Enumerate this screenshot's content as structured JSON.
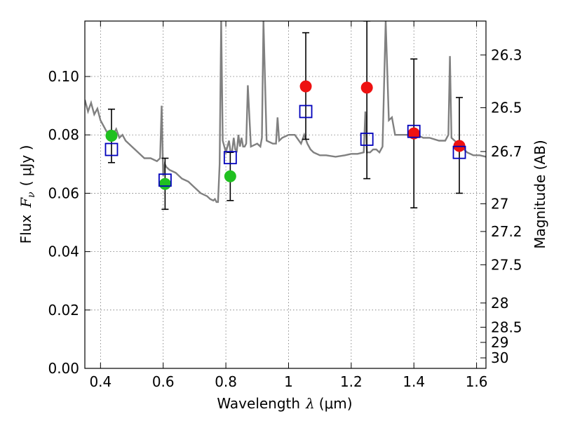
{
  "chart_data": {
    "type": "scatter",
    "xlabel": "Wavelength",
    "xlabel_symbol": "λ",
    "xlabel_unit": "(μm)",
    "ylabel": "Flux",
    "ylabel_symbol": "F",
    "ylabel_subscript": "ν",
    "ylabel_unit": "( μJy )",
    "y2label": "Magnitude (AB)",
    "xlim": [
      0.35,
      1.63
    ],
    "ylim": [
      0.0,
      0.119
    ],
    "grid": true,
    "x_ticks": [
      0.4,
      0.6,
      0.8,
      1.0,
      1.2,
      1.4,
      1.6
    ],
    "x_tick_labels": [
      "0.4",
      "0.6",
      "0.8",
      "1",
      "1.2",
      "1.4",
      "1.6"
    ],
    "y_ticks": [
      0.0,
      0.02,
      0.04,
      0.06,
      0.08,
      0.1
    ],
    "y_tick_labels": [
      "0.00",
      "0.02",
      "0.04",
      "0.06",
      "0.08",
      "0.10"
    ],
    "y2_ticks": [
      {
        "label": "26.3",
        "flux": 0.1074
      },
      {
        "label": "26.5",
        "flux": 0.0893
      },
      {
        "label": "26.7",
        "flux": 0.0743
      },
      {
        "label": "27",
        "flux": 0.0564
      },
      {
        "label": "27.2",
        "flux": 0.0469
      },
      {
        "label": "27.5",
        "flux": 0.0355
      },
      {
        "label": "28",
        "flux": 0.0224
      },
      {
        "label": "28.5",
        "flux": 0.0141
      },
      {
        "label": "29",
        "flux": 0.0089
      },
      {
        "label": "30",
        "flux": 0.0036
      }
    ],
    "series": [
      {
        "marker": "circle",
        "color": "#20c020",
        "points": [
          {
            "x": 0.435,
            "y": 0.0797,
            "ylo": 0.0705,
            "yhi": 0.0888
          },
          {
            "x": 0.606,
            "y": 0.0632,
            "ylo": 0.0545,
            "yhi": 0.072
          },
          {
            "x": 0.814,
            "y": 0.0658,
            "ylo": 0.0575,
            "yhi": 0.074
          }
        ]
      },
      {
        "marker": "circle",
        "color": "#ee1111",
        "points": [
          {
            "x": 1.055,
            "y": 0.0966,
            "ylo": 0.0785,
            "yhi": 0.115
          },
          {
            "x": 1.25,
            "y": 0.0962,
            "ylo": 0.065,
            "yhi": 0.119
          },
          {
            "x": 1.4,
            "y": 0.0805,
            "ylo": 0.055,
            "yhi": 0.106
          },
          {
            "x": 1.545,
            "y": 0.0762,
            "ylo": 0.06,
            "yhi": 0.0928
          }
        ]
      },
      {
        "marker": "square-open",
        "color": "#0000bb",
        "points": [
          {
            "x": 0.435,
            "y": 0.075
          },
          {
            "x": 0.606,
            "y": 0.0645
          },
          {
            "x": 0.814,
            "y": 0.0722
          },
          {
            "x": 1.055,
            "y": 0.088
          },
          {
            "x": 1.25,
            "y": 0.0785
          },
          {
            "x": 1.4,
            "y": 0.0812
          },
          {
            "x": 1.545,
            "y": 0.074
          }
        ]
      }
    ],
    "model_spectrum": {
      "color": "#808080",
      "x": [
        0.35,
        0.36,
        0.37,
        0.38,
        0.39,
        0.4,
        0.41,
        0.42,
        0.43,
        0.44,
        0.45,
        0.46,
        0.47,
        0.48,
        0.49,
        0.5,
        0.52,
        0.54,
        0.56,
        0.58,
        0.59,
        0.595,
        0.6,
        0.605,
        0.61,
        0.62,
        0.64,
        0.66,
        0.68,
        0.7,
        0.72,
        0.74,
        0.75,
        0.76,
        0.765,
        0.77,
        0.775,
        0.78,
        0.785,
        0.79,
        0.795,
        0.8,
        0.805,
        0.81,
        0.815,
        0.82,
        0.825,
        0.83,
        0.835,
        0.84,
        0.845,
        0.85,
        0.855,
        0.86,
        0.865,
        0.87,
        0.88,
        0.9,
        0.91,
        0.915,
        0.92,
        0.93,
        0.95,
        0.96,
        0.965,
        0.97,
        0.98,
        1.0,
        1.02,
        1.04,
        1.05,
        1.06,
        1.07,
        1.08,
        1.1,
        1.12,
        1.15,
        1.18,
        1.2,
        1.22,
        1.24,
        1.245,
        1.25,
        1.255,
        1.26,
        1.27,
        1.28,
        1.29,
        1.3,
        1.31,
        1.32,
        1.33,
        1.34,
        1.35,
        1.37,
        1.39,
        1.4,
        1.41,
        1.43,
        1.45,
        1.48,
        1.5,
        1.51,
        1.515,
        1.52,
        1.53,
        1.55,
        1.57,
        1.59,
        1.61,
        1.63
      ],
      "y": [
        0.092,
        0.088,
        0.091,
        0.087,
        0.089,
        0.085,
        0.083,
        0.081,
        0.0815,
        0.08,
        0.082,
        0.079,
        0.08,
        0.078,
        0.077,
        0.076,
        0.074,
        0.072,
        0.072,
        0.071,
        0.072,
        0.09,
        0.066,
        0.07,
        0.069,
        0.068,
        0.067,
        0.065,
        0.064,
        0.062,
        0.06,
        0.059,
        0.058,
        0.0575,
        0.058,
        0.057,
        0.057,
        0.07,
        0.119,
        0.078,
        0.076,
        0.074,
        0.076,
        0.078,
        0.074,
        0.0745,
        0.079,
        0.075,
        0.0745,
        0.08,
        0.076,
        0.079,
        0.076,
        0.076,
        0.077,
        0.097,
        0.076,
        0.077,
        0.076,
        0.079,
        0.119,
        0.078,
        0.077,
        0.077,
        0.086,
        0.078,
        0.079,
        0.08,
        0.08,
        0.077,
        0.08,
        0.077,
        0.075,
        0.074,
        0.073,
        0.073,
        0.0725,
        0.073,
        0.0735,
        0.0735,
        0.074,
        0.088,
        0.074,
        0.074,
        0.074,
        0.075,
        0.075,
        0.074,
        0.076,
        0.119,
        0.085,
        0.086,
        0.08,
        0.08,
        0.08,
        0.08,
        0.08,
        0.08,
        0.079,
        0.079,
        0.078,
        0.078,
        0.08,
        0.107,
        0.079,
        0.078,
        0.076,
        0.074,
        0.073,
        0.073,
        0.0725
      ]
    }
  }
}
